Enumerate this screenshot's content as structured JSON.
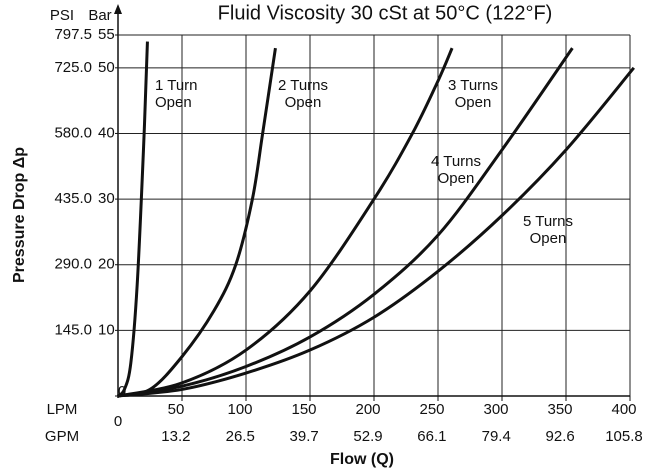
{
  "chart_data": {
    "type": "line",
    "title": "Fluid Viscosity 30 cSt at 50°C (122°F)",
    "y_label": "Pressure Drop Δp",
    "x_label": "Flow (Q)",
    "y_unit": "Bar",
    "y2_unit": "PSI",
    "x_unit": "LPM",
    "x2_unit": "GPM",
    "xlim": [
      0,
      400
    ],
    "xticks": [
      50,
      100,
      150,
      200,
      250,
      300,
      350,
      400
    ],
    "x2lim": [
      0,
      105.8
    ],
    "x2ticks": [
      0,
      13.2,
      26.5,
      39.7,
      52.9,
      66.1,
      79.4,
      92.6,
      105.8
    ],
    "ylim": [
      0,
      55
    ],
    "yticks": [
      10,
      20,
      30,
      40,
      50,
      55
    ],
    "y2lim": [
      0,
      797.5
    ],
    "y2ticks": [
      0,
      {
        "value": 145,
        "label": "145.0"
      },
      {
        "value": 290,
        "label": "290.0"
      },
      {
        "value": 435,
        "label": "435.0"
      },
      {
        "value": 580,
        "label": "580.0"
      },
      {
        "value": 725,
        "label": "725.0"
      },
      797.5
    ],
    "grid": true,
    "color": "#111111",
    "series": [
      {
        "x": [
          0,
          5,
          10,
          15,
          20,
          23
        ],
        "values": [
          0,
          1,
          5,
          17,
          38,
          54
        ]
      },
      {
        "x": [
          0,
          25,
          50,
          75,
          92,
          105,
          113,
          123
        ],
        "values": [
          0,
          1,
          6,
          13,
          20,
          30,
          40,
          53
        ]
      },
      {
        "x": [
          0,
          50,
          100,
          150,
          200,
          230,
          250,
          261
        ],
        "values": [
          0,
          2,
          7,
          16,
          30,
          40,
          48,
          53
        ]
      },
      {
        "x": [
          0,
          50,
          100,
          150,
          200,
          250,
          300,
          355
        ],
        "values": [
          0,
          1.5,
          4.5,
          9,
          15.5,
          24.5,
          37.5,
          53
        ]
      },
      {
        "x": [
          0,
          50,
          100,
          150,
          200,
          250,
          300,
          350,
          403
        ],
        "values": [
          0,
          1,
          3.5,
          7,
          12,
          19,
          27.5,
          37.5,
          50
        ]
      }
    ],
    "annotations": [
      [
        "1 Turn",
        "Open"
      ],
      [
        "2 Turns",
        "Open"
      ],
      [
        "3 Turns",
        "Open"
      ],
      [
        "4 Turns",
        "Open"
      ],
      [
        "5 Turns",
        "Open"
      ]
    ]
  }
}
